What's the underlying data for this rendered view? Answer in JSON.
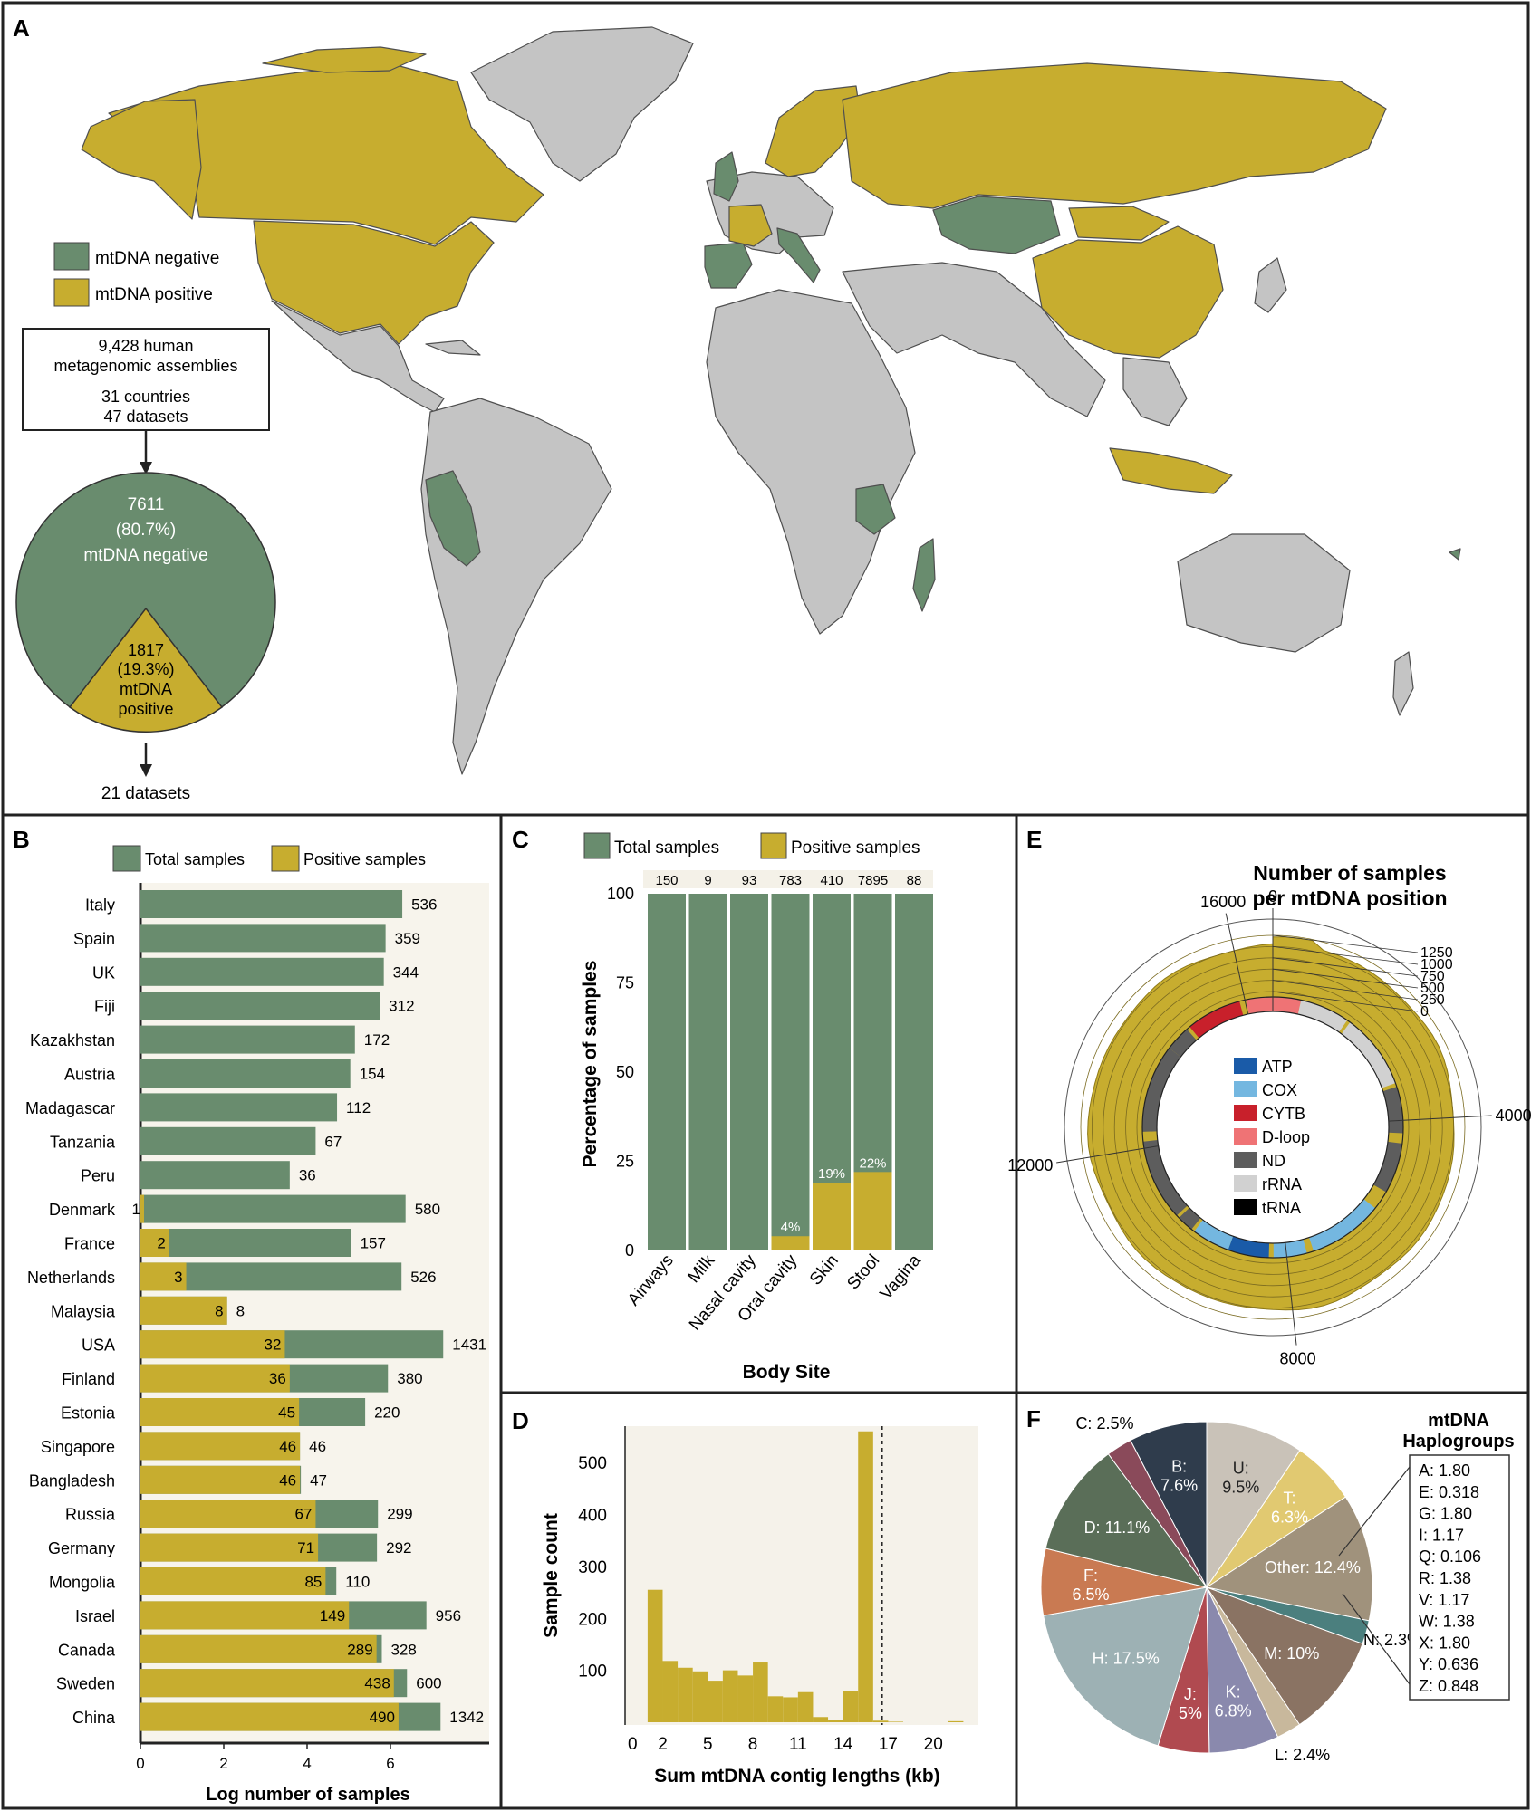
{
  "colors": {
    "green": "#698c6e",
    "gold": "#c7ad2f",
    "grey": "#c4c4c4",
    "mapline": "#4f4f4f",
    "frame": "#222222"
  },
  "panel_a": {
    "letter": "A",
    "legend": [
      "mtDNA negative",
      "mtDNA positive"
    ],
    "summary_box": [
      "9,428 human",
      "metagenomic assemblies",
      "31 countries",
      "47 datasets"
    ],
    "pie": {
      "negative_lines": [
        "7611",
        "(80.7%)",
        "mtDNA negative"
      ],
      "positive_lines": [
        "1817",
        "(19.3%)",
        "mtDNA",
        "positive"
      ]
    },
    "bottom_note": "21 datasets"
  },
  "panel_b": {
    "letter": "B",
    "xlabel": "Log number of samples",
    "chart_data": {
      "type": "bar",
      "orientation": "horizontal",
      "stacked": true,
      "scale": "log",
      "legend": [
        "Total samples",
        "Positive samples"
      ],
      "xticks": [
        "0",
        "2",
        "4",
        "6"
      ],
      "categories": [
        "Italy",
        "Spain",
        "UK",
        "Fiji",
        "Kazakhstan",
        "Austria",
        "Madagascar",
        "Tanzania",
        "Peru",
        "Denmark",
        "France",
        "Netherlands",
        "Malaysia",
        "USA",
        "Finland",
        "Estonia",
        "Singapore",
        "Bangladesh",
        "Russia",
        "Germany",
        "Mongolia",
        "Israel",
        "Canada",
        "Sweden",
        "China"
      ],
      "series": [
        {
          "name": "Total samples",
          "values": [
            536,
            359,
            344,
            312,
            172,
            154,
            112,
            67,
            36,
            580,
            157,
            526,
            8,
            1431,
            380,
            220,
            46,
            47,
            299,
            292,
            110,
            956,
            328,
            600,
            1342
          ]
        },
        {
          "name": "Positive samples",
          "values": [
            0,
            0,
            0,
            0,
            0,
            0,
            0,
            0,
            0,
            1,
            2,
            3,
            8,
            32,
            36,
            45,
            46,
            46,
            67,
            71,
            85,
            149,
            289,
            438,
            490
          ]
        }
      ]
    }
  },
  "panel_c": {
    "letter": "C",
    "xlabel": "Body Site",
    "ylabel": "Percentage of samples",
    "chart_data": {
      "type": "bar",
      "stacked": true,
      "legend": [
        "Total samples",
        "Positive samples"
      ],
      "categories": [
        "Airways",
        "Milk",
        "Nasal cavity",
        "Oral cavity",
        "Skin",
        "Stool",
        "Vagina"
      ],
      "totals": [
        "150",
        "9",
        "93",
        "783",
        "410",
        "7895",
        "88"
      ],
      "positive_pct": [
        0,
        0,
        0,
        4,
        19,
        22,
        0
      ],
      "pct_labels": [
        "",
        "",
        "",
        "4%",
        "19%",
        "22%",
        ""
      ],
      "yticks": [
        "0",
        "25",
        "50",
        "75",
        "100"
      ],
      "ylim": [
        0,
        100
      ]
    }
  },
  "panel_d": {
    "letter": "D",
    "xlabel": "Sum mtDNA contig lengths (kb)",
    "ylabel": "Sample count",
    "chart_data": {
      "type": "bar",
      "histogram": true,
      "bin_width_kb": 1,
      "bin_starts_kb": [
        1,
        2,
        3,
        4,
        5,
        6,
        7,
        8,
        9,
        10,
        11,
        12,
        13,
        14,
        15,
        16,
        17,
        18,
        19,
        20,
        21
      ],
      "values": [
        255,
        118,
        105,
        98,
        80,
        100,
        90,
        115,
        50,
        48,
        58,
        10,
        5,
        60,
        560,
        3,
        1,
        0,
        0,
        0,
        2
      ],
      "reference_line_kb": 16.6,
      "xticks": [
        "0",
        "2",
        "5",
        "8",
        "11",
        "14",
        "17",
        "20"
      ],
      "yticks": [
        "100",
        "200",
        "300",
        "400",
        "500"
      ],
      "xlim": [
        -0.5,
        23
      ],
      "ylim": [
        0,
        570
      ]
    }
  },
  "panel_e": {
    "letter": "E",
    "title_lines": [
      "Number of samples",
      "per mtDNA position"
    ],
    "chart_data": {
      "type": "area",
      "coordinate": "polar",
      "position_ticks": [
        "0",
        "4000",
        "8000",
        "12000",
        "16000"
      ],
      "radial_ticks": [
        "0",
        "250",
        "500",
        "750",
        "1000",
        "1250"
      ],
      "approx_level": 1050,
      "legend": [
        "ATP",
        "COX",
        "CYTB",
        "D-loop",
        "ND",
        "rRNA",
        "tRNA"
      ],
      "legend_colors": [
        "#1a5ba8",
        "#74b7e0",
        "#c8202b",
        "#ef7375",
        "#5d5d5d",
        "#d1d1d1",
        "#000000"
      ]
    }
  },
  "panel_f": {
    "letter": "F",
    "side_title": [
      "mtDNA",
      "Haplogroups"
    ],
    "chart_data": {
      "type": "pie",
      "slices": [
        {
          "label": "U: 9.5%",
          "value": 9.5,
          "color": "#c9c2b8"
        },
        {
          "label": "T: 6.3%",
          "value": 6.3,
          "color": "#e1c971"
        },
        {
          "label": "Other: 12.4%",
          "value": 12.4,
          "color": "#a0927c"
        },
        {
          "label": "N: 2.3%",
          "value": 2.3,
          "color": "#4b7f7e"
        },
        {
          "label": "M: 10%",
          "value": 10,
          "color": "#8a7363"
        },
        {
          "label": "L: 2.4%",
          "value": 2.4,
          "color": "#c8b89c"
        },
        {
          "label": "K: 6.8%",
          "value": 6.8,
          "color": "#8a89ad"
        },
        {
          "label": "J: 5%",
          "value": 5,
          "color": "#b04a50"
        },
        {
          "label": "H: 17.5%",
          "value": 17.5,
          "color": "#9db1b4"
        },
        {
          "label": "F: 6.5%",
          "value": 6.5,
          "color": "#c97a52"
        },
        {
          "label": "D: 11.1%",
          "value": 11.1,
          "color": "#5a6e58"
        },
        {
          "label": "C: 2.5%",
          "value": 2.5,
          "color": "#8a4a5a"
        },
        {
          "label": "B: 7.6%",
          "value": 7.6,
          "color": "#2f3c4c"
        }
      ],
      "other_breakdown": [
        "A: 1.80",
        "E: 0.318",
        "G: 1.80",
        "I: 1.17",
        "Q: 0.106",
        "R: 1.38",
        "V: 1.17",
        "W: 1.38",
        "X: 1.80",
        "Y: 0.636",
        "Z: 0.848"
      ]
    }
  }
}
